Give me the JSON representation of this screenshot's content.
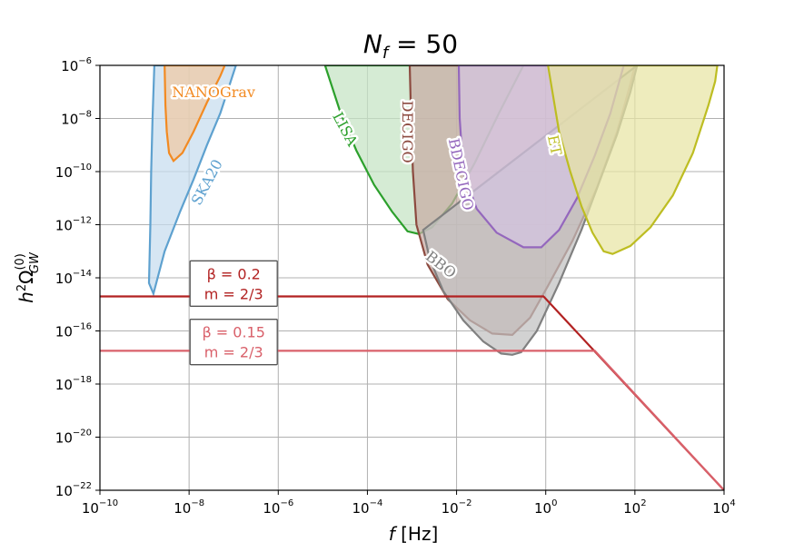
{
  "chart_data": {
    "type": "area",
    "title": "N_f = 50",
    "title_parts": {
      "symbol": "N",
      "subscript": "f",
      "rest": " = 50"
    },
    "xlabel": "f [Hz]",
    "ylabel": "h²Ω_GW^(0)",
    "xscale": "log",
    "yscale": "log",
    "xlim_log10": [
      -10,
      4
    ],
    "ylim_log10": [
      -22,
      -6
    ],
    "grid": true,
    "x_ticks": [
      {
        "base": "10",
        "exp": "−10",
        "value": -10
      },
      {
        "base": "10",
        "exp": "−8",
        "value": -8
      },
      {
        "base": "10",
        "exp": "−6",
        "value": -6
      },
      {
        "base": "10",
        "exp": "−4",
        "value": -4
      },
      {
        "base": "10",
        "exp": "−2",
        "value": -2
      },
      {
        "base": "10",
        "exp": "0",
        "value": 0
      },
      {
        "base": "10",
        "exp": "2",
        "value": 2
      },
      {
        "base": "10",
        "exp": "4",
        "value": 4
      }
    ],
    "y_ticks": [
      {
        "base": "10",
        "exp": "−6",
        "value": -6
      },
      {
        "base": "10",
        "exp": "−8",
        "value": -8
      },
      {
        "base": "10",
        "exp": "−10",
        "value": -10
      },
      {
        "base": "10",
        "exp": "−12",
        "value": -12
      },
      {
        "base": "10",
        "exp": "−14",
        "value": -14
      },
      {
        "base": "10",
        "exp": "−16",
        "value": -16
      },
      {
        "base": "10",
        "exp": "−18",
        "value": -18
      },
      {
        "base": "10",
        "exp": "−20",
        "value": -20
      },
      {
        "base": "10",
        "exp": "−22",
        "value": -22
      }
    ],
    "sensitivity_curves": [
      {
        "name": "SKA20",
        "color": "#5ea1cf",
        "fill": "#c6dcef",
        "log10_points": [
          [
            -8.78,
            -6
          ],
          [
            -8.82,
            -8
          ],
          [
            -8.85,
            -10
          ],
          [
            -8.87,
            -12
          ],
          [
            -8.9,
            -14.2
          ],
          [
            -8.8,
            -14.6
          ],
          [
            -8.55,
            -13
          ],
          [
            -8.2,
            -11.5
          ],
          [
            -7.9,
            -10.3
          ],
          [
            -7.6,
            -9
          ],
          [
            -7.3,
            -7.8
          ],
          [
            -6.95,
            -6
          ]
        ]
      },
      {
        "name": "NANOGrav",
        "color": "#f28a22",
        "fill": "#f0c9a2",
        "log10_points": [
          [
            -8.55,
            -6
          ],
          [
            -8.53,
            -7.5
          ],
          [
            -8.5,
            -8.5
          ],
          [
            -8.45,
            -9.3
          ],
          [
            -8.35,
            -9.6
          ],
          [
            -8.15,
            -9.3
          ],
          [
            -7.9,
            -8.5
          ],
          [
            -7.6,
            -7.4
          ],
          [
            -7.3,
            -6.4
          ],
          [
            -7.2,
            -6
          ]
        ]
      },
      {
        "name": "LISA",
        "color": "#2ca02c",
        "fill": "#c5e3c3",
        "log10_points": [
          [
            -4.95,
            -6
          ],
          [
            -4.6,
            -7.8
          ],
          [
            -4.25,
            -9.2
          ],
          [
            -3.85,
            -10.5
          ],
          [
            -3.45,
            -11.5
          ],
          [
            -3.1,
            -12.25
          ],
          [
            -2.85,
            -12.35
          ],
          [
            -2.55,
            -12.1
          ],
          [
            -2.1,
            -11.2
          ],
          [
            -1.6,
            -9.7
          ],
          [
            -1.05,
            -7.8
          ],
          [
            -0.5,
            -6
          ]
        ]
      },
      {
        "name": "DECIGO",
        "color": "#8c4a3f",
        "fill": "#c8aaa4",
        "log10_points": [
          [
            -3.05,
            -6
          ],
          [
            -3.02,
            -8
          ],
          [
            -2.98,
            -10
          ],
          [
            -2.9,
            -12
          ],
          [
            -2.65,
            -13.5
          ],
          [
            -2.2,
            -14.8
          ],
          [
            -1.7,
            -15.6
          ],
          [
            -1.2,
            -16.1
          ],
          [
            -0.75,
            -16.15
          ],
          [
            -0.35,
            -15.5
          ],
          [
            0.05,
            -14.3
          ],
          [
            0.6,
            -12.6
          ],
          [
            1.15,
            -10.6
          ],
          [
            1.6,
            -8.5
          ],
          [
            1.9,
            -6.7
          ],
          [
            2.0,
            -6
          ]
        ]
      },
      {
        "name": "BBO",
        "color": "#808080",
        "fill": "#c0c0c0",
        "log10_points": [
          [
            -2.75,
            -12.2
          ],
          [
            -2.6,
            -13.3
          ],
          [
            -2.3,
            -14.5
          ],
          [
            -1.85,
            -15.6
          ],
          [
            -1.4,
            -16.4
          ],
          [
            -1.0,
            -16.85
          ],
          [
            -0.75,
            -16.9
          ],
          [
            -0.55,
            -16.8
          ],
          [
            -0.2,
            -16
          ],
          [
            0.3,
            -14.2
          ],
          [
            0.8,
            -12.2
          ],
          [
            1.2,
            -10.4
          ],
          [
            1.6,
            -8.6
          ],
          [
            1.9,
            -7
          ],
          [
            2.05,
            -6
          ]
        ]
      },
      {
        "name": "BDECIGO",
        "color": "#9467bd",
        "fill": "#d4c3e0",
        "log10_points": [
          [
            -1.95,
            -6
          ],
          [
            -1.93,
            -8
          ],
          [
            -1.85,
            -10
          ],
          [
            -1.55,
            -11.4
          ],
          [
            -1.1,
            -12.3
          ],
          [
            -0.5,
            -12.85
          ],
          [
            -0.1,
            -12.85
          ],
          [
            0.3,
            -12.2
          ],
          [
            0.7,
            -11
          ],
          [
            1.1,
            -9.4
          ],
          [
            1.45,
            -7.8
          ],
          [
            1.75,
            -6
          ]
        ]
      },
      {
        "name": "ET",
        "color": "#bdbd22",
        "fill": "#e7e4a3",
        "log10_points": [
          [
            0.05,
            -6
          ],
          [
            0.15,
            -7
          ],
          [
            0.3,
            -8.5
          ],
          [
            0.55,
            -10
          ],
          [
            0.8,
            -11.3
          ],
          [
            1.05,
            -12.3
          ],
          [
            1.3,
            -13
          ],
          [
            1.5,
            -13.1
          ],
          [
            1.9,
            -12.8
          ],
          [
            2.35,
            -12.1
          ],
          [
            2.85,
            -10.9
          ],
          [
            3.3,
            -9.3
          ],
          [
            3.65,
            -7.5
          ],
          [
            3.8,
            -6.6
          ],
          [
            3.85,
            -6
          ]
        ]
      }
    ],
    "series": [
      {
        "name": "beta=0.2, m=2/3",
        "color": "#b22222",
        "log10_points": [
          [
            -10,
            -14.7
          ],
          [
            -0.05,
            -14.7
          ],
          [
            4,
            -22.0
          ]
        ],
        "annotation": {
          "line1": "β = 0.2",
          "line2": "m = 2/3"
        }
      },
      {
        "name": "beta=0.15, m=2/3",
        "color": "#d9606a",
        "log10_points": [
          [
            -10,
            -16.75
          ],
          [
            1.1,
            -16.75
          ],
          [
            4,
            -22.0
          ]
        ],
        "annotation": {
          "line1": "β = 0.15",
          "line2": "m = 2/3"
        }
      }
    ]
  }
}
